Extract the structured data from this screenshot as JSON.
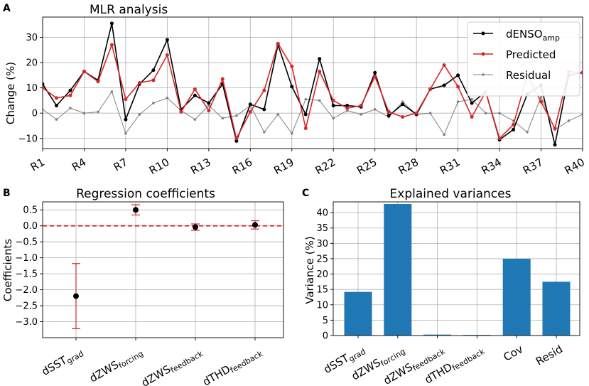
{
  "chart_data": [
    {
      "panel": "A",
      "type": "line",
      "title": "MLR analysis",
      "xlabel": "",
      "ylabel": "Change (%)",
      "ylim": [
        -14,
        38
      ],
      "yticks": [
        -10,
        0,
        10,
        20,
        30
      ],
      "categories": [
        "R1",
        "R2",
        "R3",
        "R4",
        "R5",
        "R6",
        "R7",
        "R8",
        "R9",
        "R10",
        "R11",
        "R12",
        "R13",
        "R14",
        "R15",
        "R16",
        "R17",
        "R18",
        "R19",
        "R20",
        "R21",
        "R22",
        "R23",
        "R24",
        "R25",
        "R26",
        "R27",
        "R28",
        "R29",
        "R30",
        "R31",
        "R32",
        "R33",
        "R34",
        "R35",
        "R36",
        "R37",
        "R38",
        "R39",
        "R40"
      ],
      "xtick_labels": [
        "R1",
        "R4",
        "R7",
        "R10",
        "R13",
        "R16",
        "R19",
        "R22",
        "R25",
        "R28",
        "R31",
        "R34",
        "R37",
        "R40"
      ],
      "grid": true,
      "legend": "top-right",
      "series": [
        {
          "name": "dENSO",
          "name_sub": "amp",
          "color": "#000000",
          "marker_size": 2.5,
          "line_width": 1.6,
          "values": [
            11.5,
            3,
            9,
            16.5,
            13,
            35.5,
            -2.5,
            11.5,
            17,
            29,
            1.5,
            7,
            4,
            11.5,
            -11,
            3.5,
            1.5,
            27,
            10.5,
            -0.5,
            21.5,
            3,
            3,
            2.5,
            16,
            -1,
            3.5,
            -0.5,
            9.5,
            11,
            15,
            4,
            8.5,
            -10.5,
            -6.5,
            7.5,
            11,
            -12.5,
            15,
            16
          ]
        },
        {
          "name": "Predicted",
          "name_sub": "",
          "color": "#d62728",
          "marker_size": 2.5,
          "line_width": 1.6,
          "values": [
            10,
            6,
            7,
            16.5,
            12.5,
            27,
            5.5,
            12,
            13,
            23,
            0.5,
            9.5,
            1,
            13.5,
            -10,
            0.5,
            9,
            27.5,
            18.5,
            -6,
            16.5,
            5,
            2,
            3,
            14.5,
            0.5,
            -1.5,
            0,
            9.5,
            19,
            10.5,
            -1.5,
            8.5,
            -10,
            -4.5,
            15,
            4.5,
            -6,
            16.5,
            16
          ]
        },
        {
          "name": "Residual",
          "name_sub": "",
          "color": "#808080",
          "marker_size": 1.8,
          "line_width": 1.0,
          "values": [
            1.5,
            -2.5,
            2,
            0,
            0.5,
            8.5,
            -8,
            -0.5,
            4,
            6,
            1,
            -2.5,
            3,
            -2,
            -1,
            3,
            -7.5,
            -0.5,
            -8,
            5.5,
            5,
            -2,
            1,
            -0.5,
            1.5,
            -1.5,
            4.5,
            -0.5,
            0,
            -8.5,
            4.5,
            5.5,
            0,
            0,
            -3,
            -7.5,
            6.5,
            -6.5,
            -3,
            -0.5
          ]
        }
      ]
    },
    {
      "panel": "B",
      "type": "errorbar",
      "title": "Regression coefficients",
      "xlabel": "",
      "ylabel": "Coefficients",
      "ylim": [
        -3.5,
        0.75
      ],
      "yticks": [
        -3.0,
        -2.5,
        -2.0,
        -1.5,
        -1.0,
        -0.5,
        0.0,
        0.5
      ],
      "ytick_labels": [
        "−3.0",
        "−2.5",
        "−2.0",
        "−1.5",
        "−1.0",
        "−0.5",
        "0.0",
        "0.5"
      ],
      "grid": true,
      "reference_line": {
        "value": 0,
        "color": "#d62728",
        "style": "dashed"
      },
      "categories": [
        {
          "base": "dSST",
          "sub": "grad"
        },
        {
          "base": "dZWS",
          "sub": "forcing"
        },
        {
          "base": "dZWS",
          "sub": "feedback"
        },
        {
          "base": "dTHD",
          "sub": "feedback"
        }
      ],
      "values": [
        -2.2,
        0.5,
        -0.04,
        0.03
      ],
      "err_low": [
        -3.22,
        0.34,
        -0.14,
        -0.1
      ],
      "err_high": [
        -1.18,
        0.66,
        0.06,
        0.16
      ],
      "point_color": "#000000",
      "error_color": "#d62728"
    },
    {
      "panel": "C",
      "type": "bar",
      "title": "Explained variances",
      "xlabel": "",
      "ylabel": "Variance (%)",
      "ylim": [
        0,
        43.5
      ],
      "yticks": [
        0,
        5,
        10,
        15,
        20,
        25,
        30,
        35,
        40
      ],
      "grid": true,
      "bar_color": "#1f77b4",
      "categories": [
        {
          "base": "dSST",
          "sub": "grad"
        },
        {
          "base": "dZWS",
          "sub": "forcing"
        },
        {
          "base": "dZWS",
          "sub": "feedback"
        },
        {
          "base": "dTHD",
          "sub": "feedback"
        },
        {
          "base": "Cov",
          "sub": ""
        },
        {
          "base": "Resid",
          "sub": ""
        }
      ],
      "values": [
        14.2,
        42.8,
        0.3,
        0.2,
        25.0,
        17.5
      ]
    }
  ]
}
